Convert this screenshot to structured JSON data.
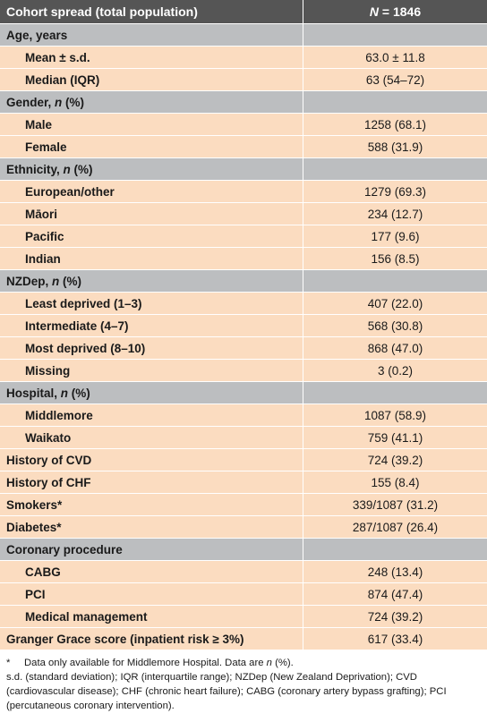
{
  "header": {
    "label": "Cohort spread (total population)",
    "value": "N = 1846"
  },
  "rows": [
    {
      "type": "section",
      "label": "Age, years",
      "value": ""
    },
    {
      "type": "sub",
      "label": "Mean ± s.d.",
      "value": "63.0 ± 11.8"
    },
    {
      "type": "sub",
      "label": "Median (IQR)",
      "value": "63 (54–72)"
    },
    {
      "type": "section",
      "label": "Gender, n (%)",
      "value": ""
    },
    {
      "type": "sub",
      "label": "Male",
      "value": "1258 (68.1)"
    },
    {
      "type": "sub",
      "label": "Female",
      "value": "588 (31.9)"
    },
    {
      "type": "section",
      "label": "Ethnicity, n (%)",
      "value": ""
    },
    {
      "type": "sub",
      "label": "European/other",
      "value": "1279 (69.3)"
    },
    {
      "type": "sub",
      "label": "Māori",
      "value": "234 (12.7)"
    },
    {
      "type": "sub",
      "label": "Pacific",
      "value": "177 (9.6)"
    },
    {
      "type": "sub",
      "label": "Indian",
      "value": "156 (8.5)"
    },
    {
      "type": "section",
      "label": "NZDep, n (%)",
      "value": ""
    },
    {
      "type": "sub",
      "label": "Least deprived (1–3)",
      "value": "407 (22.0)"
    },
    {
      "type": "sub",
      "label": "Intermediate (4–7)",
      "value": "568 (30.8)"
    },
    {
      "type": "sub",
      "label": "Most deprived (8–10)",
      "value": "868 (47.0)"
    },
    {
      "type": "sub",
      "label": "Missing",
      "value": "3 (0.2)"
    },
    {
      "type": "section",
      "label": "Hospital, n (%)",
      "value": ""
    },
    {
      "type": "sub",
      "label": "Middlemore",
      "value": "1087 (58.9)"
    },
    {
      "type": "sub",
      "label": "Waikato",
      "value": "759 (41.1)"
    },
    {
      "type": "top",
      "label": "History of CVD",
      "value": "724 (39.2)"
    },
    {
      "type": "top",
      "label": "History of CHF",
      "value": "155 (8.4)"
    },
    {
      "type": "top",
      "label": "Smokers*",
      "value": "339/1087 (31.2)"
    },
    {
      "type": "top",
      "label": "Diabetes*",
      "value": "287/1087 (26.4)"
    },
    {
      "type": "section",
      "label": "Coronary procedure",
      "value": ""
    },
    {
      "type": "sub",
      "label": "CABG",
      "value": "248 (13.4)"
    },
    {
      "type": "sub",
      "label": "PCI",
      "value": "874 (47.4)"
    },
    {
      "type": "sub",
      "label": "Medical management",
      "value": "724 (39.2)"
    },
    {
      "type": "top",
      "label": "Granger Grace score (inpatient risk ≥ 3%)",
      "value": "617 (33.4)"
    }
  ],
  "footnotes": {
    "star": "*",
    "line1": "Data only available for Middlemore Hospital. Data are n (%).",
    "line2": "s.d. (standard deviation); IQR (interquartile range); NZDep (New Zealand Deprivation); CVD (cardiovascular disease); CHF (chronic heart failure); CABG (coronary artery bypass grafting); PCI (percutaneous coronary intervention)."
  }
}
